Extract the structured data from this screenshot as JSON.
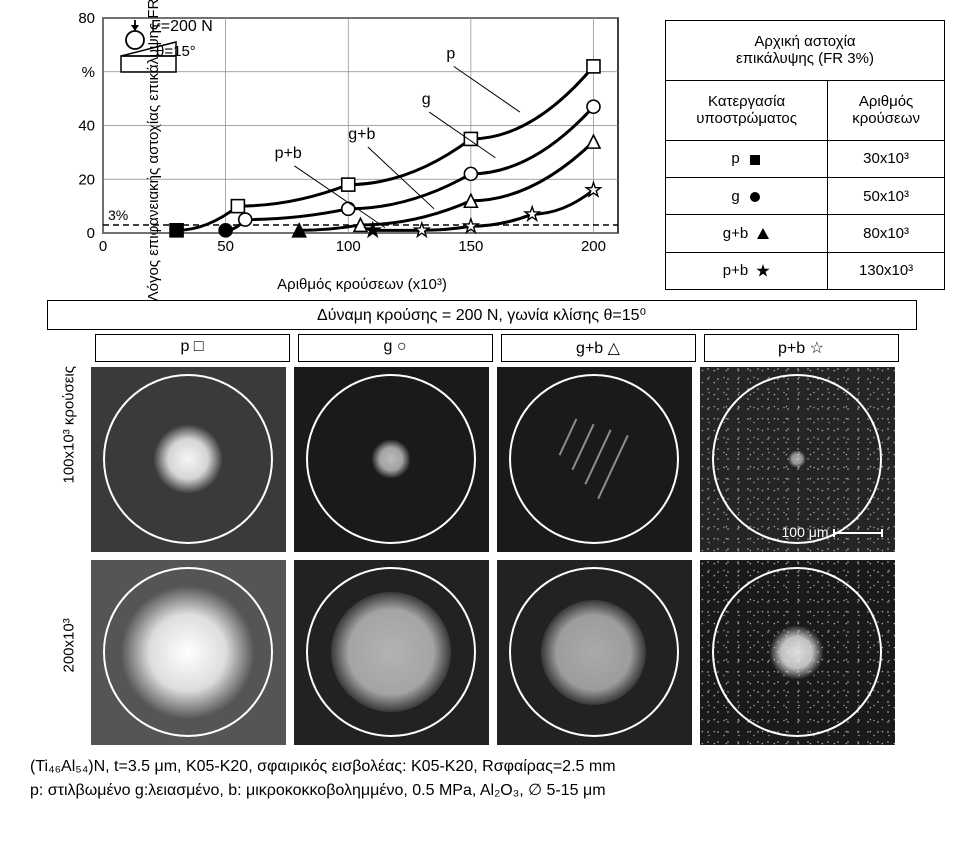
{
  "chart": {
    "type": "line",
    "ylabel": "Λόγος επιφανειακής αστοχίας επικάλυψης FR",
    "xlabel": "Αριθμός κρούσεων (x10³)",
    "xlim": [
      0,
      210
    ],
    "ylim": [
      0,
      80
    ],
    "xticks": [
      0,
      50,
      100,
      150,
      200
    ],
    "yticks": [
      0,
      20,
      40,
      60,
      80
    ],
    "ytick_labels": [
      "0",
      "20",
      "40",
      "%",
      "80"
    ],
    "grid_color": "#888",
    "line_color": "#000",
    "line_width": 3,
    "threshold_y": 3,
    "threshold_label": "3%",
    "inset": {
      "force_label": "F=200 N",
      "angle_label": "θ=15°"
    },
    "series_labels": {
      "p": "p",
      "g": "g",
      "gb": "g+b",
      "pb": "p+b"
    },
    "series": {
      "p": {
        "marker": "square",
        "points": [
          [
            30,
            1
          ],
          [
            55,
            10
          ],
          [
            100,
            18
          ],
          [
            150,
            35
          ],
          [
            200,
            62
          ]
        ],
        "start_fill": true
      },
      "g": {
        "marker": "circle",
        "points": [
          [
            50,
            1
          ],
          [
            58,
            5
          ],
          [
            100,
            9
          ],
          [
            150,
            22
          ],
          [
            200,
            47
          ]
        ],
        "start_fill": true
      },
      "gb": {
        "marker": "triangle",
        "points": [
          [
            80,
            1
          ],
          [
            105,
            3
          ],
          [
            150,
            12
          ],
          [
            200,
            34
          ]
        ],
        "start_fill": true
      },
      "pb": {
        "marker": "star",
        "points": [
          [
            110,
            1
          ],
          [
            130,
            1
          ],
          [
            150,
            2.5
          ],
          [
            175,
            7
          ],
          [
            200,
            16
          ]
        ],
        "start_fill": true
      }
    }
  },
  "legend": {
    "title_l1": "Αρχική αστοχία",
    "title_l2": "επικάλυψης (FR 3%)",
    "col1": "Κατεργασία υποστρώματος",
    "col2": "Αριθμός κρούσεων",
    "rows": [
      {
        "proc": "p",
        "marker": "square-filled",
        "val": "30x10³"
      },
      {
        "proc": "g",
        "marker": "circle-filled",
        "val": "50x10³"
      },
      {
        "proc": "g+b",
        "marker": "triangle-filled",
        "val": "80x10³"
      },
      {
        "proc": "p+b",
        "marker": "star-filled",
        "val": "130x10³"
      }
    ]
  },
  "images": {
    "heading": "Δύναμη κρούσης = 200 N, γωνία κλίσης θ=15⁰",
    "cols": [
      "p □",
      "g ○",
      "g+b △",
      "p+b ☆"
    ],
    "row_labels": [
      "100x10³ κρούσεις",
      "200x10³"
    ],
    "scale_label": "100 μm",
    "cells": [
      {
        "bg": "#3a3a3a",
        "dmg_size": 70,
        "dmg_opacity": 0.95
      },
      {
        "bg": "#1a1a1a",
        "dmg_size": 40,
        "dmg_opacity": 0.7
      },
      {
        "bg": "#1a1a1a",
        "dmg_size": 0,
        "streaks": true
      },
      {
        "bg": "#252525",
        "dmg_size": 18,
        "dmg_opacity": 0.6,
        "noisy": true
      },
      {
        "bg": "#555",
        "dmg_size": 135,
        "dmg_opacity": 1.0
      },
      {
        "bg": "#222",
        "dmg_size": 120,
        "dmg_opacity": 0.85,
        "rough": true
      },
      {
        "bg": "#222",
        "dmg_size": 105,
        "dmg_opacity": 0.8,
        "rough": true
      },
      {
        "bg": "#1a1a1a",
        "dmg_size": 55,
        "dmg_opacity": 0.85,
        "noisy": true
      }
    ]
  },
  "caption": {
    "line1": "(Ti₄₆Al₅₄)N, t=3.5 μm, K05-K20, σφαιρικός εισβολέας: K05-K20,  Rσφαίρας=2.5 mm",
    "line2": "p: στιλβωμένο g:λειασμένο, b: μικροκοκκοβολημμένο, 0.5 MPa, Al₂O₃, ∅ 5-15 μm"
  }
}
